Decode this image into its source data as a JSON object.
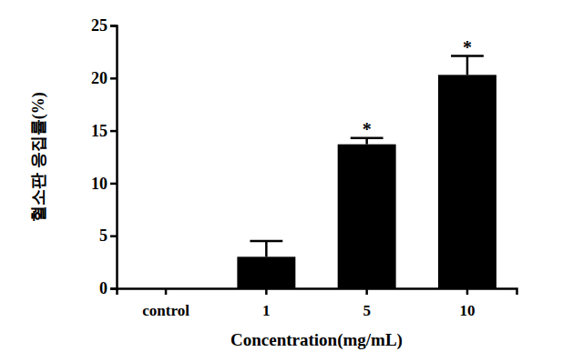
{
  "chart_data": {
    "type": "bar",
    "y_label": "혈소판 응집률(%)",
    "x_label": "Concentration(mg/mL)",
    "categories": [
      "control",
      "1",
      "5",
      "10"
    ],
    "values": [
      0,
      3.0,
      13.7,
      20.3
    ],
    "errors": [
      0,
      1.5,
      0.6,
      1.8
    ],
    "significance": [
      null,
      null,
      "*",
      "*"
    ],
    "color": "#000000",
    "ylim": [
      0,
      25
    ],
    "yticks": [
      0,
      5,
      10,
      15,
      20,
      25
    ],
    "grid": false
  }
}
